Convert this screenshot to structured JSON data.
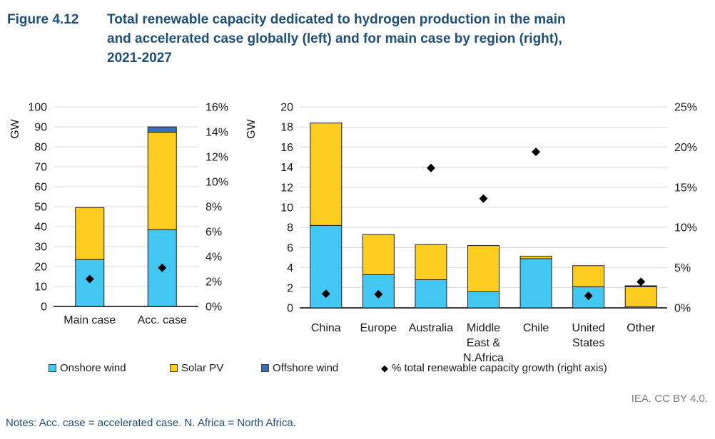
{
  "header": {
    "figure_label": "Figure 4.12",
    "title_lines": [
      "Total renewable capacity dedicated to hydrogen production in the main",
      "and accelerated case globally (left) and for main case by region (right),",
      "2021-2027"
    ]
  },
  "colors": {
    "onshore_wind": "#41C7F1",
    "solar_pv": "#FCCD1F",
    "offshore_wind": "#3B6CB6",
    "growth_marker": "#000000",
    "gridline": "#D9D9D9",
    "axis_line": "#404040",
    "bar_outline": "#1F1F1F",
    "title_blue": "#1F4E79",
    "attribution_gray": "#7f7f7f"
  },
  "chart_data": [
    {
      "type": "bar",
      "subtype": "stacked-bars-with-point-markers",
      "unit_label": "GW",
      "categories": [
        "Main case",
        "Acc. case"
      ],
      "series": [
        {
          "name": "Onshore wind",
          "color": "#41C7F1",
          "values": [
            23.5,
            38.5
          ]
        },
        {
          "name": "Solar PV",
          "color": "#FCCD1F",
          "values": [
            26.0,
            48.8
          ]
        },
        {
          "name": "Offshore wind",
          "color": "#3B6CB6",
          "values": [
            0,
            2.7
          ]
        }
      ],
      "points": {
        "name": "% total renewable capacity growth (right axis)",
        "color": "#000000",
        "values_pct": [
          2.2,
          3.1
        ]
      },
      "left_axis": {
        "label": "GW",
        "min": 0,
        "max": 100,
        "step": 10,
        "suffix": ""
      },
      "right_axis": {
        "min": 0,
        "max": 16,
        "step": 2,
        "suffix": "%"
      },
      "grid": true,
      "legend_position": "bottom-shared"
    },
    {
      "type": "bar",
      "subtype": "stacked-bars-with-point-markers",
      "unit_label": "GW",
      "categories": [
        "China",
        "Europe",
        "Australia",
        "Middle East & N.Africa",
        "Chile",
        "United States",
        "Other"
      ],
      "series": [
        {
          "name": "Onshore wind",
          "color": "#41C7F1",
          "values": [
            8.2,
            3.3,
            2.8,
            1.6,
            4.9,
            2.1,
            0.1
          ]
        },
        {
          "name": "Solar PV",
          "color": "#FCCD1F",
          "values": [
            10.2,
            4.0,
            3.5,
            4.6,
            0.25,
            2.1,
            2.0
          ]
        },
        {
          "name": "Offshore wind",
          "color": "#3B6CB6",
          "values": [
            0,
            0,
            0,
            0,
            0,
            0,
            0.1
          ]
        }
      ],
      "points": {
        "name": "% total renewable capacity growth (right axis)",
        "color": "#000000",
        "values_pct": [
          1.75,
          1.7,
          17.4,
          13.6,
          19.4,
          1.5,
          3.25
        ]
      },
      "left_axis": {
        "label": "GW",
        "min": 0,
        "max": 20,
        "step": 2,
        "suffix": ""
      },
      "right_axis": {
        "min": 0,
        "max": 25,
        "step": 5,
        "suffix": "%"
      },
      "grid": true,
      "legend_position": "bottom-shared"
    }
  ],
  "legend": {
    "items": [
      {
        "marker": "square",
        "color": "#41C7F1",
        "label": "Onshore wind"
      },
      {
        "marker": "square",
        "color": "#FCCD1F",
        "label": "Solar PV"
      },
      {
        "marker": "square",
        "color": "#3B6CB6",
        "label": "Offshore wind"
      },
      {
        "marker": "diamond",
        "color": "#000000",
        "label": "% total renewable capacity growth (right axis)"
      }
    ]
  },
  "footer": {
    "attribution": "IEA. CC BY 4.0.",
    "notes": "Notes: Acc. case = accelerated case. N. Africa = North Africa."
  }
}
